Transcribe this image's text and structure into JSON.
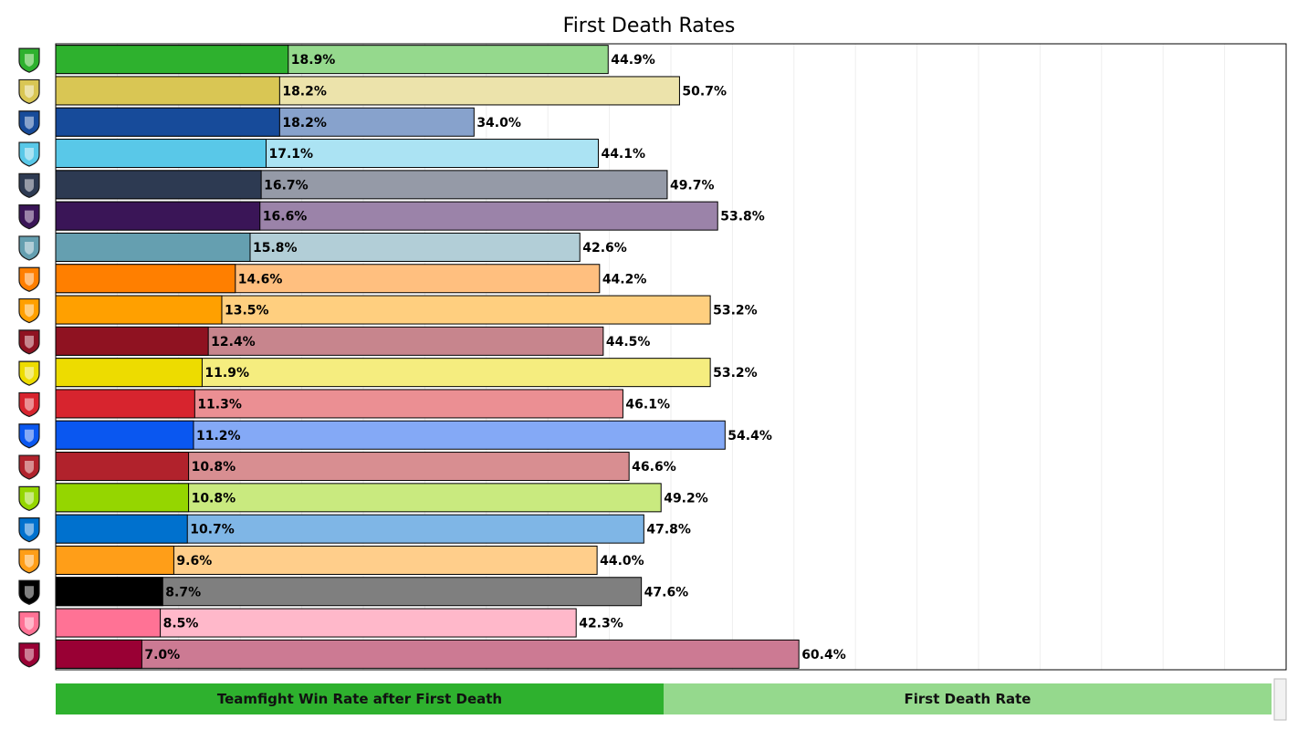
{
  "chart_data": {
    "type": "bar",
    "orientation": "horizontal",
    "title": "First Death Rates",
    "xlabel": "",
    "ylabel": "",
    "xlim": [
      0,
      100
    ],
    "grid": true,
    "legend_position": "bottom",
    "categories": [
      {
        "icon": "gorilla-logo-icon",
        "primary_color": "#2eb12e",
        "secondary_color": "#95d98d"
      },
      {
        "icon": "tiger-logo-icon",
        "primary_color": "#d9c654",
        "secondary_color": "#ece3ab"
      },
      {
        "icon": "crossed-x-logo-icon",
        "primary_color": "#174b9a",
        "secondary_color": "#87a2cc"
      },
      {
        "icon": "london-shield-logo-icon",
        "primary_color": "#59c8e8",
        "secondary_color": "#abe3f3"
      },
      {
        "icon": "rooster-logo-icon",
        "primary_color": "#2d3a52",
        "secondary_color": "#959aa7"
      },
      {
        "icon": "lion-logo-icon",
        "primary_color": "#3a1557",
        "secondary_color": "#9b83a9"
      },
      {
        "icon": "gz-logo-icon",
        "primary_color": "#659fb0",
        "secondary_color": "#b2ced7"
      },
      {
        "icon": "sf-logo-icon",
        "primary_color": "#ff7f00",
        "secondary_color": "#ffbf7f"
      },
      {
        "icon": "panda-logo-icon",
        "primary_color": "#ffa000",
        "secondary_color": "#ffcf7f"
      },
      {
        "icon": "phoenix-logo-icon",
        "primary_color": "#8f1221",
        "secondary_color": "#c7858d"
      },
      {
        "icon": "valiant-wings-logo-icon",
        "primary_color": "#eddc00",
        "secondary_color": "#f5ed7f"
      },
      {
        "icon": "dragon-logo-icon",
        "primary_color": "#d7242e",
        "secondary_color": "#eb8f93"
      },
      {
        "icon": "boston-shield-logo-icon",
        "primary_color": "#0a57f0",
        "secondary_color": "#84a9f6"
      },
      {
        "icon": "mayhem-logo-icon",
        "primary_color": "#b1222c",
        "secondary_color": "#d88e91"
      },
      {
        "icon": "bull-horns-logo-icon",
        "primary_color": "#95d600",
        "secondary_color": "#c9ea7f"
      },
      {
        "icon": "flame-logo-icon",
        "primary_color": "#0071ce",
        "secondary_color": "#7fb6e6"
      },
      {
        "icon": "fusion-p-logo-icon",
        "primary_color": "#ff9e18",
        "secondary_color": "#ffce8b"
      },
      {
        "icon": "defiant-arrow-logo-icon",
        "primary_color": "#000000",
        "secondary_color": "#7f7f7f"
      },
      {
        "icon": "spark-logo-icon",
        "primary_color": "#ff7295",
        "secondary_color": "#ffb8ca"
      },
      {
        "icon": "justice-shield-logo-icon",
        "primary_color": "#990034",
        "secondary_color": "#cc7a93"
      }
    ],
    "series": [
      {
        "name": "Teamfight Win Rate after First Death",
        "values": [
          18.9,
          18.2,
          18.2,
          17.1,
          16.7,
          16.6,
          15.8,
          14.6,
          13.5,
          12.4,
          11.9,
          11.3,
          11.2,
          10.8,
          10.8,
          10.7,
          9.6,
          8.7,
          8.5,
          7.0
        ],
        "labels": [
          "18.9%",
          "18.2%",
          "18.2%",
          "17.1%",
          "16.7%",
          "16.6%",
          "15.8%",
          "14.6%",
          "13.5%",
          "12.4%",
          "11.9%",
          "11.3%",
          "11.2%",
          "10.8%",
          "10.8%",
          "10.7%",
          "9.6%",
          "8.7%",
          "8.5%",
          "7.0%"
        ],
        "legend_color": "#2eb12e"
      },
      {
        "name": "First Death Rate",
        "values": [
          44.9,
          50.7,
          34.0,
          44.1,
          49.7,
          53.8,
          42.6,
          44.2,
          53.2,
          44.5,
          53.2,
          46.1,
          54.4,
          46.6,
          49.2,
          47.8,
          44.0,
          47.6,
          42.3,
          60.4
        ],
        "labels": [
          "44.9%",
          "50.7%",
          "34.0%",
          "44.1%",
          "49.7%",
          "53.8%",
          "42.6%",
          "44.2%",
          "53.2%",
          "44.5%",
          "53.2%",
          "46.1%",
          "54.4%",
          "46.6%",
          "49.2%",
          "47.8%",
          "44.0%",
          "47.6%",
          "42.3%",
          "60.4%"
        ],
        "legend_color": "#95d98d"
      }
    ]
  }
}
